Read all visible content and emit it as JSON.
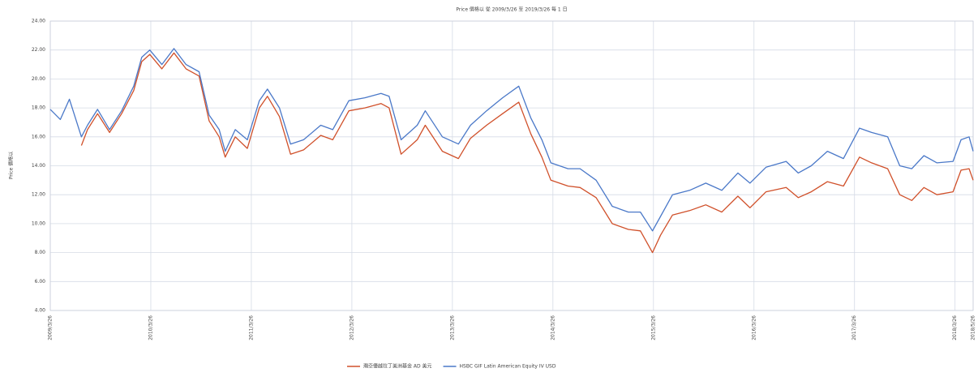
{
  "chart_data": {
    "type": "line",
    "title": "Price 價格以 從 2009/3/26 至 2019/3/26 每 1 日",
    "y_label": "Price 價格以",
    "xlim": [
      2009.23,
      2018.41
    ],
    "xticks": [
      {
        "value": 2009.23,
        "label": "2009/3/26"
      },
      {
        "value": 2010.23,
        "label": "2010/3/26"
      },
      {
        "value": 2011.23,
        "label": "2011/3/26"
      },
      {
        "value": 2012.23,
        "label": "2012/3/26"
      },
      {
        "value": 2013.23,
        "label": "2013/3/26"
      },
      {
        "value": 2014.23,
        "label": "2014/3/26"
      },
      {
        "value": 2015.23,
        "label": "2015/3/26"
      },
      {
        "value": 2016.23,
        "label": "2016/3/26"
      },
      {
        "value": 2017.23,
        "label": "2017/3/26"
      },
      {
        "value": 2018.23,
        "label": "2018/3/26"
      },
      {
        "value": 2018.41,
        "label": "2018/5/26"
      }
    ],
    "ylim": [
      4,
      24
    ],
    "yticks": [
      {
        "value": 4,
        "label": "4.00"
      },
      {
        "value": 6,
        "label": "6.00"
      },
      {
        "value": 8,
        "label": "8.00"
      },
      {
        "value": 10,
        "label": "10.00"
      },
      {
        "value": 12,
        "label": "12.00"
      },
      {
        "value": 14,
        "label": "14.00"
      },
      {
        "value": 16,
        "label": "16.00"
      },
      {
        "value": 18,
        "label": "18.00"
      },
      {
        "value": 20,
        "label": "20.00"
      },
      {
        "value": 22,
        "label": "22.00"
      },
      {
        "value": 24,
        "label": "24.00"
      }
    ],
    "grid": true,
    "legend": "bottom",
    "x": [
      2009.23,
      2009.33,
      2009.42,
      2009.54,
      2009.6,
      2009.7,
      2009.82,
      2009.94,
      2010.06,
      2010.14,
      2010.22,
      2010.34,
      2010.46,
      2010.58,
      2010.71,
      2010.81,
      2010.91,
      2010.97,
      2011.07,
      2011.19,
      2011.31,
      2011.39,
      2011.51,
      2011.62,
      2011.75,
      2011.92,
      2012.04,
      2012.2,
      2012.36,
      2012.52,
      2012.6,
      2012.72,
      2012.88,
      2012.96,
      2013.13,
      2013.29,
      2013.41,
      2013.57,
      2013.73,
      2013.89,
      2014.01,
      2014.12,
      2014.21,
      2014.38,
      2014.5,
      2014.66,
      2014.82,
      2014.98,
      2015.1,
      2015.22,
      2015.3,
      2015.42,
      2015.59,
      2015.75,
      2015.91,
      2016.07,
      2016.19,
      2016.35,
      2016.55,
      2016.67,
      2016.8,
      2016.96,
      2017.12,
      2017.28,
      2017.4,
      2017.56,
      2017.68,
      2017.8,
      2017.92,
      2018.05,
      2018.21,
      2018.29,
      2018.37,
      2018.41
    ],
    "series": [
      {
        "name": "瀚亞優越拉丁美洲基金 AD 美元",
        "color": "#d0502a",
        "values": [
          null,
          null,
          null,
          15.4,
          16.5,
          17.6,
          16.3,
          17.6,
          19.2,
          21.2,
          21.7,
          20.7,
          21.8,
          20.7,
          20.2,
          17.1,
          16.0,
          14.6,
          16.0,
          15.2,
          18.0,
          18.8,
          17.4,
          14.8,
          15.1,
          16.1,
          15.8,
          17.8,
          18.0,
          18.3,
          18.0,
          14.8,
          15.8,
          16.8,
          15.0,
          14.5,
          15.9,
          16.8,
          17.6,
          18.4,
          16.2,
          14.6,
          13.0,
          12.6,
          12.5,
          11.8,
          10.0,
          9.6,
          9.5,
          8.0,
          9.2,
          10.6,
          10.9,
          11.3,
          10.8,
          11.9,
          11.1,
          12.2,
          12.5,
          11.8,
          12.2,
          12.9,
          12.6,
          14.6,
          14.2,
          13.8,
          12.0,
          11.6,
          12.5,
          12.0,
          12.2,
          13.7,
          13.8,
          13.0
        ]
      },
      {
        "name": "HSBC GIF Latin American Equity IV USD",
        "color": "#4a78c8",
        "values": [
          17.9,
          17.2,
          18.6,
          16.0,
          16.8,
          17.9,
          16.5,
          17.8,
          19.5,
          21.5,
          22.0,
          21.0,
          22.1,
          21.0,
          20.5,
          17.5,
          16.5,
          15.0,
          16.5,
          15.8,
          18.5,
          19.3,
          18.0,
          15.5,
          15.8,
          16.8,
          16.5,
          18.5,
          18.7,
          19.0,
          18.8,
          15.8,
          16.8,
          17.8,
          16.0,
          15.5,
          16.8,
          17.8,
          18.7,
          19.5,
          17.3,
          15.8,
          14.2,
          13.8,
          13.8,
          13.0,
          11.2,
          10.8,
          10.8,
          9.5,
          10.5,
          12.0,
          12.3,
          12.8,
          12.3,
          13.5,
          12.8,
          13.9,
          14.3,
          13.5,
          14.0,
          15.0,
          14.5,
          16.6,
          16.3,
          16.0,
          14.0,
          13.8,
          14.7,
          14.2,
          14.3,
          15.8,
          16.0,
          15.0
        ]
      }
    ]
  }
}
